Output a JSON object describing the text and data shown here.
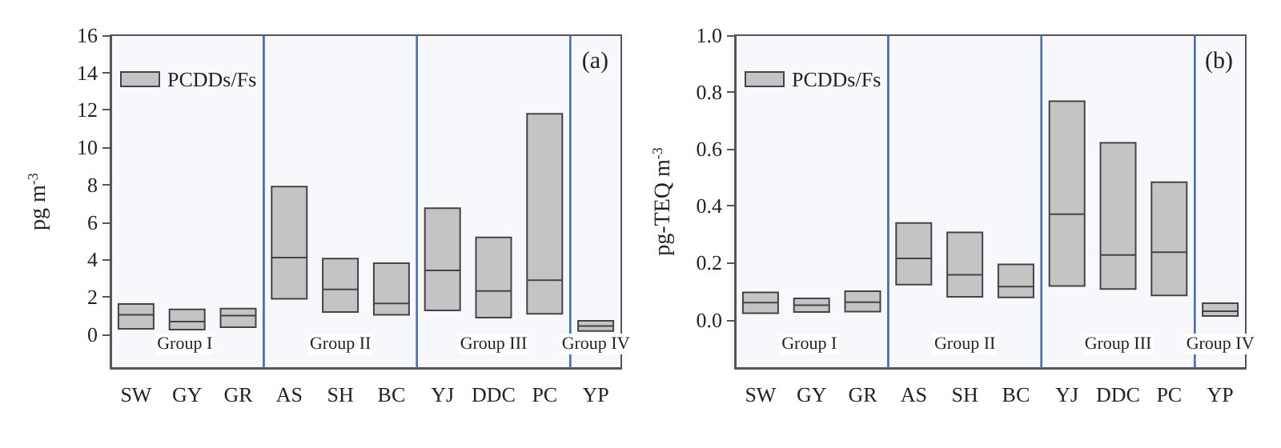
{
  "chart_data": [
    {
      "type": "box",
      "title": "(a)",
      "ylabel": "pg m$^{-3}$",
      "categories": [
        "SW",
        "GY",
        "GR",
        "AS",
        "SH",
        "BC",
        "YJ",
        "DDC",
        "PC",
        "YP"
      ],
      "series": [
        {
          "name": "PCDDs/Fs",
          "color": "#c4c4c4",
          "boxes": [
            {
              "low": 0.3,
              "q1": 0.3,
              "median": 1.05,
              "q3": 1.62,
              "high": 1.62
            },
            {
              "low": 0.25,
              "q1": 0.25,
              "median": 0.68,
              "q3": 1.33,
              "high": 1.33
            },
            {
              "low": 0.38,
              "q1": 0.38,
              "median": 1.0,
              "q3": 1.38,
              "high": 1.38
            },
            {
              "low": 1.9,
              "q1": 1.9,
              "median": 4.1,
              "q3": 7.9,
              "high": 7.9
            },
            {
              "low": 1.2,
              "q1": 1.2,
              "median": 2.4,
              "q3": 4.05,
              "high": 4.05
            },
            {
              "low": 1.05,
              "q1": 1.05,
              "median": 1.65,
              "q3": 3.8,
              "high": 3.8
            },
            {
              "low": 1.28,
              "q1": 1.28,
              "median": 3.42,
              "q3": 6.75,
              "high": 6.75
            },
            {
              "low": 0.9,
              "q1": 0.9,
              "median": 2.32,
              "q3": 5.18,
              "high": 5.18
            },
            {
              "low": 1.1,
              "q1": 1.1,
              "median": 2.9,
              "q3": 11.8,
              "high": 11.8
            },
            {
              "low": 0.18,
              "q1": 0.18,
              "median": 0.45,
              "q3": 0.72,
              "high": 0.72
            }
          ]
        }
      ],
      "ylim": [
        -1.8,
        16
      ],
      "yticks": [
        0,
        2,
        4,
        6,
        8,
        10,
        12,
        14,
        16
      ],
      "bands": [
        {
          "axis": "x",
          "from": "SW",
          "to": "GR",
          "label": "Group I",
          "color": "#4a6fb5"
        },
        {
          "axis": "x",
          "from": "AS",
          "to": "BC",
          "label": "Group II",
          "color": "#4a6fb5"
        },
        {
          "axis": "x",
          "from": "YJ",
          "to": "PC",
          "label": "Group III",
          "color": "#4a6fb5"
        },
        {
          "axis": "x",
          "from": "YP",
          "to": "YP",
          "label": "Group IV",
          "color": "#4a6fb5"
        }
      ],
      "legend": "top left"
    },
    {
      "type": "box",
      "title": "(b)",
      "ylabel": "pg-TEQ m$^{-3}$",
      "categories": [
        "SW",
        "GY",
        "GR",
        "AS",
        "SH",
        "BC",
        "YJ",
        "DDC",
        "PC",
        "YP"
      ],
      "series": [
        {
          "name": "PCDDs/Fs",
          "color": "#c4c4c4",
          "boxes": [
            {
              "low": 0.023,
              "q1": 0.023,
              "median": 0.06,
              "q3": 0.096,
              "high": 0.096
            },
            {
              "low": 0.027,
              "q1": 0.027,
              "median": 0.051,
              "q3": 0.075,
              "high": 0.075
            },
            {
              "low": 0.028,
              "q1": 0.028,
              "median": 0.061,
              "q3": 0.1,
              "high": 0.1
            },
            {
              "low": 0.123,
              "q1": 0.123,
              "median": 0.215,
              "q3": 0.34,
              "high": 0.34
            },
            {
              "low": 0.08,
              "q1": 0.08,
              "median": 0.158,
              "q3": 0.307,
              "high": 0.307
            },
            {
              "low": 0.078,
              "q1": 0.078,
              "median": 0.116,
              "q3": 0.194,
              "high": 0.194
            },
            {
              "low": 0.118,
              "q1": 0.118,
              "median": 0.371,
              "q3": 0.768,
              "high": 0.768
            },
            {
              "low": 0.108,
              "q1": 0.108,
              "median": 0.227,
              "q3": 0.622,
              "high": 0.622
            },
            {
              "low": 0.085,
              "q1": 0.085,
              "median": 0.237,
              "q3": 0.483,
              "high": 0.483
            },
            {
              "low": 0.013,
              "q1": 0.013,
              "median": 0.03,
              "q3": 0.058,
              "high": 0.058
            }
          ]
        }
      ],
      "ylim": [
        -0.17,
        1.0
      ],
      "yticks": [
        {
          "value": 0,
          "label": "0.0"
        },
        0.2,
        0.4,
        0.6,
        0.8,
        {
          "value": 1,
          "label": "1.0"
        }
      ],
      "bands": [
        {
          "axis": "x",
          "from": "SW",
          "to": "GR",
          "label": "Group I",
          "color": "#4a6fb5"
        },
        {
          "axis": "x",
          "from": "AS",
          "to": "BC",
          "label": "Group II",
          "color": "#4a6fb5"
        },
        {
          "axis": "x",
          "from": "YJ",
          "to": "PC",
          "label": "Group III",
          "color": "#4a6fb5"
        },
        {
          "axis": "x",
          "from": "YP",
          "to": "YP",
          "label": "Group IV",
          "color": "#4a6fb5"
        }
      ],
      "legend": "top left"
    }
  ]
}
